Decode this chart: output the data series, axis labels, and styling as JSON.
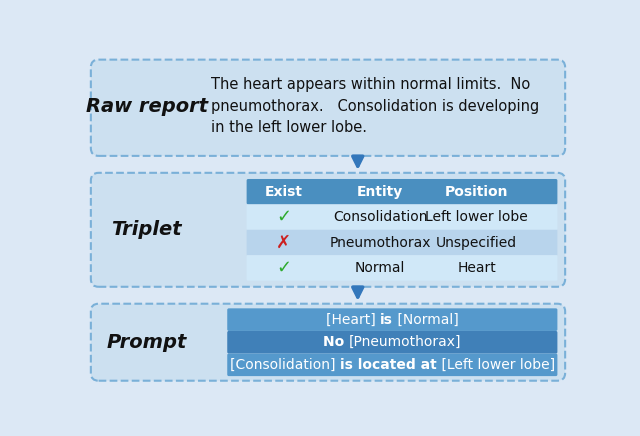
{
  "outer_bg": "#dce8f5",
  "section_bg": "#cce0f0",
  "table_header_color": "#4a8fc0",
  "table_row_light": "#d0e8f8",
  "table_row_dark": "#b8d4ec",
  "prompt_box_color_1": "#5599cc",
  "prompt_box_color_2": "#4080b8",
  "arrow_color": "#3377bb",
  "dashed_border_color": "#7ab0d8",
  "raw_report_label": "Raw report",
  "raw_report_text": "The heart appears within normal limits.  No\npneumothorax.   Consolidation is developing\nin the left lower lobe.",
  "triplet_label": "Triplet",
  "prompt_label": "Prompt",
  "table_headers": [
    "Exist",
    "Entity",
    "Position"
  ],
  "table_rows": [
    [
      "check_green",
      "Consolidation",
      "Left lower lobe"
    ],
    [
      "cross_red",
      "Pneumothorax",
      "Unspecified"
    ],
    [
      "check_green",
      "Normal",
      "Heart"
    ]
  ],
  "prompt_lines": [
    [
      {
        "text": "[Heart] ",
        "bold": false
      },
      {
        "text": "is",
        "bold": true
      },
      {
        "text": " [Normal]",
        "bold": false
      }
    ],
    [
      {
        "text": "No ",
        "bold": true
      },
      {
        "text": "[Pneumothorax]",
        "bold": false
      }
    ],
    [
      {
        "text": "[Consolidation] ",
        "bold": false
      },
      {
        "text": "is located at",
        "bold": true
      },
      {
        "text": " [Left lower lobe]",
        "bold": false
      }
    ]
  ],
  "figw": 6.4,
  "figh": 4.36,
  "dpi": 100
}
